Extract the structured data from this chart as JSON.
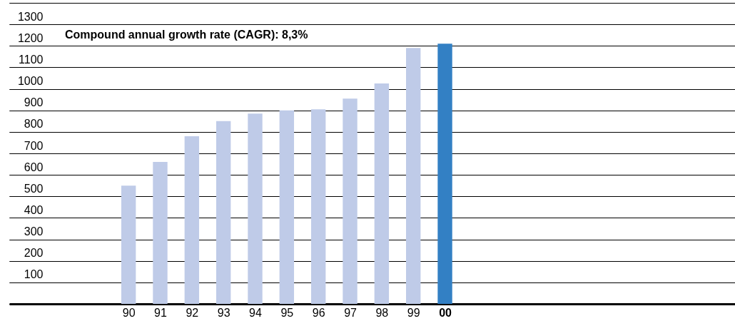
{
  "chart_data": {
    "type": "bar",
    "categories": [
      "90",
      "91",
      "92",
      "93",
      "94",
      "95",
      "96",
      "97",
      "98",
      "99",
      "00"
    ],
    "values": [
      550,
      660,
      780,
      850,
      885,
      900,
      905,
      955,
      1025,
      1190,
      1210
    ],
    "colors": [
      "#bfcbe8",
      "#bfcbe8",
      "#bfcbe8",
      "#bfcbe8",
      "#bfcbe8",
      "#bfcbe8",
      "#bfcbe8",
      "#bfcbe8",
      "#bfcbe8",
      "#bfcbe8",
      "#3380c4"
    ],
    "ylim": [
      0,
      1400
    ],
    "yticks": [
      {
        "value": 0,
        "label": null
      },
      100,
      200,
      300,
      400,
      500,
      600,
      700,
      800,
      900,
      1000,
      1100,
      1200,
      1300,
      {
        "value": 1400,
        "label": null
      }
    ],
    "grid": "y",
    "annotations": [
      "Compound annual growth rate (CAGR): 8,3%"
    ]
  }
}
